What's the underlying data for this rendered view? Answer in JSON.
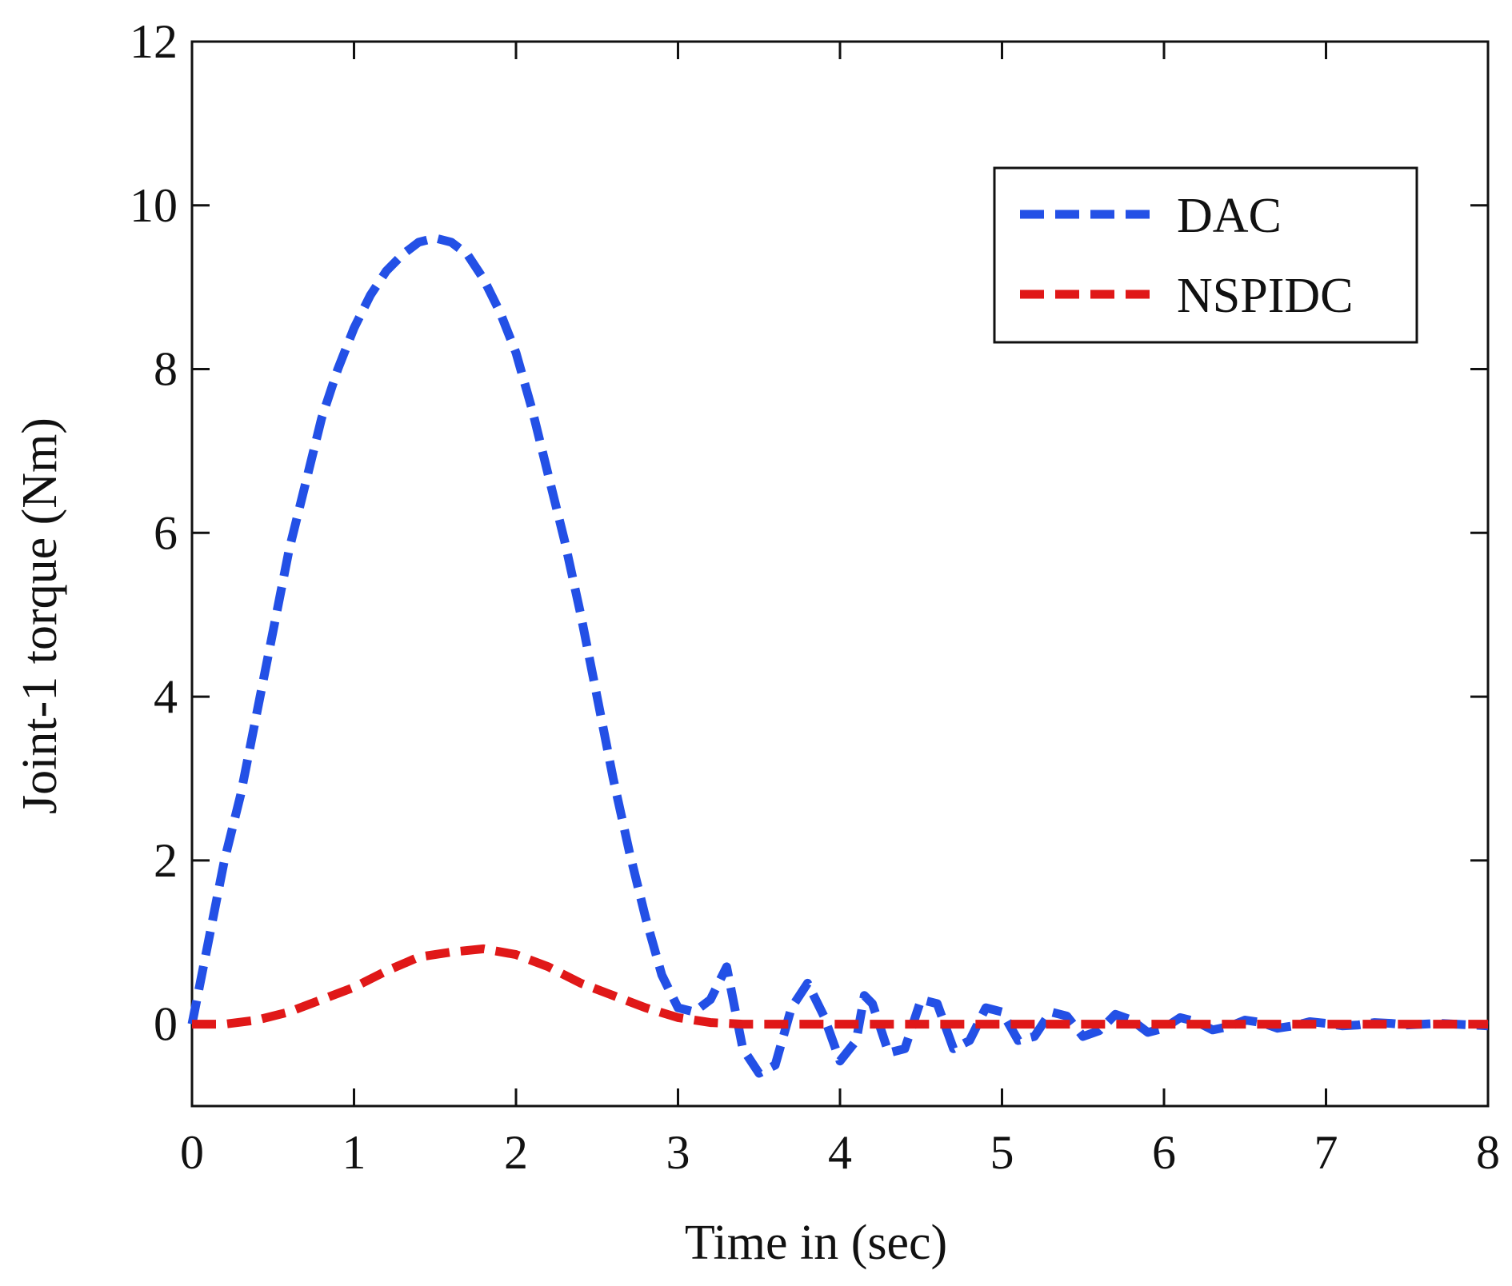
{
  "chart_data": {
    "type": "line",
    "title": "",
    "xlabel": "Time in (sec)",
    "ylabel": "Joint-1 torque (Nm)",
    "xlim": [
      0,
      8
    ],
    "ylim": [
      -1,
      12
    ],
    "xticks": [
      0,
      1,
      2,
      3,
      4,
      5,
      6,
      7,
      8
    ],
    "yticks": [
      0,
      2,
      4,
      6,
      8,
      10,
      12
    ],
    "xtick_labels": [
      "0",
      "1",
      "2",
      "3",
      "4",
      "5",
      "6",
      "7",
      "8"
    ],
    "ytick_labels": [
      "0",
      "2",
      "4",
      "6",
      "8",
      "10",
      "12"
    ],
    "grid": false,
    "legend": {
      "position": "top-right"
    },
    "series": [
      {
        "name": "DAC",
        "color": "#2350e6",
        "style": "dashed",
        "x": [
          0,
          0.1,
          0.2,
          0.3,
          0.4,
          0.5,
          0.6,
          0.7,
          0.8,
          0.9,
          1.0,
          1.1,
          1.2,
          1.3,
          1.4,
          1.5,
          1.6,
          1.7,
          1.8,
          1.9,
          2.0,
          2.1,
          2.2,
          2.3,
          2.4,
          2.5,
          2.6,
          2.7,
          2.8,
          2.9,
          3.0,
          3.1,
          3.2,
          3.3,
          3.4,
          3.5,
          3.6,
          3.7,
          3.8,
          3.9,
          4.0,
          4.1,
          4.15,
          4.2,
          4.3,
          4.4,
          4.5,
          4.6,
          4.7,
          4.8,
          4.9,
          5.0,
          5.1,
          5.2,
          5.3,
          5.4,
          5.5,
          5.6,
          5.7,
          5.8,
          5.9,
          6.0,
          6.1,
          6.2,
          6.3,
          6.4,
          6.5,
          6.6,
          6.7,
          6.8,
          6.9,
          7.0,
          7.1,
          7.2,
          7.3,
          7.4,
          7.5,
          7.6,
          7.7,
          7.8,
          7.9,
          8.0
        ],
        "y": [
          0,
          1.0,
          2.0,
          2.8,
          3.8,
          4.8,
          5.8,
          6.6,
          7.4,
          8.0,
          8.5,
          8.9,
          9.2,
          9.4,
          9.55,
          9.6,
          9.55,
          9.4,
          9.1,
          8.7,
          8.2,
          7.5,
          6.7,
          5.9,
          5.0,
          4.0,
          3.0,
          2.1,
          1.3,
          0.6,
          0.2,
          0.15,
          0.3,
          0.7,
          -0.3,
          -0.6,
          -0.5,
          0.2,
          0.5,
          0.1,
          -0.45,
          -0.2,
          0.35,
          0.25,
          -0.35,
          -0.3,
          0.3,
          0.25,
          -0.3,
          -0.2,
          0.2,
          0.15,
          -0.2,
          -0.15,
          0.15,
          0.1,
          -0.15,
          -0.08,
          0.12,
          0.05,
          -0.1,
          -0.05,
          0.08,
          0.03,
          -0.07,
          -0.03,
          0.05,
          0.02,
          -0.05,
          -0.02,
          0.03,
          0.01,
          -0.02,
          -0.01,
          0.02,
          0.01,
          -0.01,
          0,
          0.01,
          0,
          -0.01,
          -0.02
        ]
      },
      {
        "name": "NSPIDC",
        "color": "#e01818",
        "style": "dashed",
        "x": [
          0,
          0.2,
          0.4,
          0.6,
          0.8,
          1.0,
          1.2,
          1.4,
          1.6,
          1.8,
          2.0,
          2.2,
          2.4,
          2.6,
          2.8,
          3.0,
          3.2,
          3.4,
          3.6,
          4.0,
          5.0,
          6.0,
          7.0,
          8.0
        ],
        "y": [
          0,
          0.0,
          0.05,
          0.15,
          0.3,
          0.45,
          0.65,
          0.82,
          0.88,
          0.92,
          0.85,
          0.7,
          0.5,
          0.35,
          0.2,
          0.08,
          0.02,
          0.0,
          0.0,
          0.0,
          0.0,
          0.0,
          0.0,
          0.0
        ]
      }
    ]
  }
}
